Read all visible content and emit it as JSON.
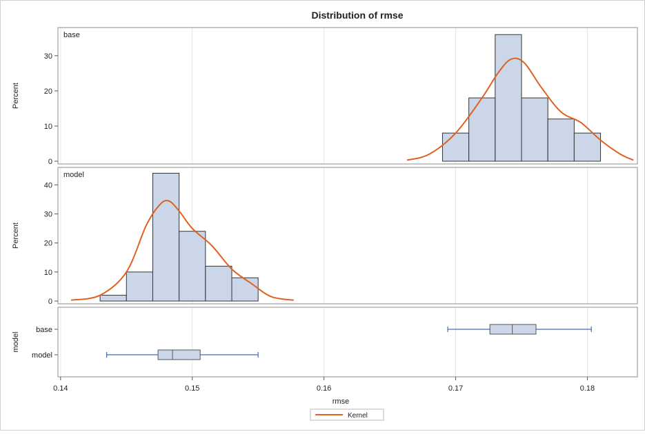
{
  "chart_data": {
    "type": "histogram",
    "title": "Distribution of rmse",
    "xlabel": "rmse",
    "x_ticks": [
      0.14,
      0.15,
      0.16,
      0.17,
      0.18
    ],
    "x_tick_labels": [
      "0.14",
      "0.15",
      "0.16",
      "0.17",
      "0.18"
    ],
    "xlim": [
      0.1398,
      0.1838
    ],
    "panels": [
      {
        "label": "base",
        "ylabel": "Percent",
        "ylim": [
          0,
          38
        ],
        "y_ticks": [
          0,
          10,
          20,
          30
        ],
        "y_tick_labels": [
          "0",
          "10",
          "20",
          "30"
        ],
        "bin_edges": [
          0.169,
          0.171,
          0.173,
          0.175,
          0.177,
          0.179,
          0.181
        ],
        "percents": [
          8,
          18,
          36,
          18,
          12,
          8
        ],
        "kernel_x": [
          0.1663,
          0.168,
          0.17,
          0.172,
          0.1732,
          0.1742,
          0.1752,
          0.1765,
          0.178,
          0.1795,
          0.181,
          0.1825,
          0.1835
        ],
        "kernel_y": [
          0.3,
          2,
          8,
          18,
          25,
          29,
          28,
          21,
          14,
          11,
          6,
          2,
          0.3
        ]
      },
      {
        "label": "model",
        "ylabel": "Percent",
        "ylim": [
          0,
          46
        ],
        "y_ticks": [
          0,
          10,
          20,
          30,
          40
        ],
        "y_tick_labels": [
          "0",
          "10",
          "20",
          "30",
          "40"
        ],
        "bin_edges": [
          0.143,
          0.145,
          0.147,
          0.149,
          0.151,
          0.153,
          0.155
        ],
        "percents": [
          2,
          10,
          44,
          24,
          12,
          8
        ],
        "kernel_x": [
          0.1408,
          0.143,
          0.145,
          0.1465,
          0.1475,
          0.1482,
          0.149,
          0.15,
          0.1515,
          0.153,
          0.1545,
          0.156,
          0.1577
        ],
        "kernel_y": [
          0.3,
          2,
          10,
          26,
          33,
          34.5,
          31,
          25,
          19,
          11,
          6,
          1.5,
          0.3
        ]
      }
    ],
    "boxplot": {
      "ylabel": "model",
      "categories": [
        "base",
        "model"
      ],
      "boxes": [
        {
          "name": "base",
          "min": 0.1694,
          "q1": 0.1726,
          "median": 0.1743,
          "q3": 0.1761,
          "max": 0.1803
        },
        {
          "name": "model",
          "min": 0.1435,
          "q1": 0.1474,
          "median": 0.1485,
          "q3": 0.1506,
          "max": 0.155
        }
      ]
    },
    "legend": {
      "position": "bottom",
      "entries": [
        "Kernel"
      ]
    },
    "colors": {
      "bar_fill": "#cbd7e8",
      "bar_stroke": "#333333",
      "kernel": "#e06020",
      "box_whisker": "#4a68b0",
      "grid": "#e6e6e6"
    },
    "grid": true
  }
}
